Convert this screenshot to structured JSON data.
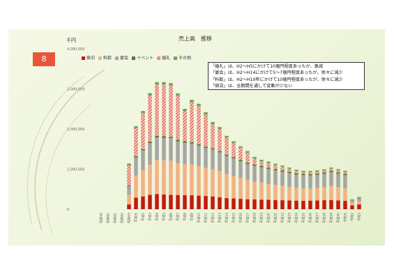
{
  "slide": {
    "number": "8"
  },
  "chart_data": {
    "type": "bar",
    "stacked": true,
    "title": "売上高　推移",
    "unit_label": "千円",
    "ylim": [
      0,
      4000000
    ],
    "yticks": [
      0,
      1000000,
      2000000,
      3000000,
      4000000
    ],
    "ytick_labels": [
      "0",
      "1,000,000",
      "2,000,000",
      "3,000,000",
      "4,000,000"
    ],
    "categories": [
      "昭和59",
      "昭和60",
      "昭和61",
      "昭和62",
      "昭和63",
      "平成元",
      "平成2",
      "平成3",
      "平成4",
      "平成5",
      "平成6",
      "平成7",
      "平成8",
      "平成9",
      "平成10",
      "平成11",
      "平成12",
      "平成13",
      "平成14",
      "平成15",
      "平成16",
      "平成17",
      "平成18",
      "平成19",
      "平成20",
      "平成21",
      "平成22",
      "平成23",
      "平成24",
      "平成25",
      "平成26",
      "平成27",
      "平成28",
      "平成29",
      "平成30",
      "令和元",
      "令和2",
      "令和3"
    ],
    "series": [
      {
        "name": "宿泊",
        "color": "#c41a10",
        "pattern": "solid",
        "values": [
          0,
          0,
          0,
          0,
          120000,
          290000,
          320000,
          360000,
          380000,
          370000,
          360000,
          355000,
          350000,
          350000,
          340000,
          330000,
          320000,
          300000,
          280000,
          270000,
          260000,
          250000,
          245000,
          240000,
          235000,
          230000,
          225000,
          220000,
          215000,
          210000,
          215000,
          220000,
          225000,
          230000,
          220000,
          210000,
          100000,
          120000
        ]
      },
      {
        "name": "料飲",
        "color": "#f4b183",
        "pattern": "solid",
        "values": [
          0,
          0,
          0,
          0,
          250000,
          550000,
          650000,
          750000,
          850000,
          850000,
          850000,
          800000,
          780000,
          770000,
          740000,
          700000,
          680000,
          650000,
          600000,
          560000,
          520000,
          480000,
          450000,
          430000,
          400000,
          380000,
          360000,
          340000,
          320000,
          310000,
          300000,
          310000,
          320000,
          350000,
          330000,
          310000,
          60000,
          80000
        ]
      },
      {
        "name": "宴会",
        "color": "#a6a6a6",
        "pattern": "solid",
        "values": [
          0,
          0,
          0,
          0,
          200000,
          450000,
          500000,
          540000,
          560000,
          560000,
          560000,
          540000,
          530000,
          520000,
          510000,
          500000,
          490000,
          470000,
          450000,
          440000,
          420000,
          400000,
          390000,
          380000,
          370000,
          360000,
          350000,
          340000,
          330000,
          330000,
          330000,
          330000,
          340000,
          350000,
          340000,
          330000,
          50000,
          70000
        ]
      },
      {
        "name": "イベント",
        "color": "#4e7a30",
        "pattern": "solid",
        "values": [
          0,
          0,
          0,
          0,
          20000,
          30000,
          30000,
          35000,
          40000,
          40000,
          35000,
          35000,
          35000,
          30000,
          30000,
          30000,
          30000,
          30000,
          30000,
          30000,
          30000,
          30000,
          30000,
          30000,
          30000,
          30000,
          30000,
          30000,
          30000,
          30000,
          30000,
          30000,
          30000,
          30000,
          30000,
          30000,
          10000,
          10000
        ]
      },
      {
        "name": "婚礼",
        "color": "#e8553a",
        "pattern": "hatched",
        "values": [
          0,
          0,
          0,
          0,
          500000,
          700000,
          900000,
          1150000,
          1280000,
          1290000,
          1280000,
          1100000,
          750000,
          1000000,
          950000,
          800000,
          600000,
          550000,
          420000,
          350000,
          300000,
          250000,
          150000,
          120000,
          120000,
          100000,
          90000,
          80000,
          60000,
          50000,
          50000,
          50000,
          50000,
          50000,
          50000,
          50000,
          10000,
          10000
        ]
      },
      {
        "name": "その他",
        "color": "#6aa84f",
        "pattern": "solid",
        "values": [
          0,
          0,
          0,
          0,
          50000,
          50000,
          50000,
          60000,
          60000,
          60000,
          60000,
          60000,
          60000,
          60000,
          60000,
          60000,
          55000,
          50000,
          50000,
          45000,
          40000,
          40000,
          40000,
          35000,
          35000,
          35000,
          35000,
          30000,
          30000,
          30000,
          30000,
          30000,
          30000,
          30000,
          30000,
          30000,
          20000,
          20000
        ]
      }
    ],
    "legend_position": "top-left",
    "annotation_lines": [
      "「婚礼」は、H2～H5にかけて10億円程度あったが、激減",
      "「宴会」は、H2～H14にかけて5～7億円程度あったが、徐々に減少",
      "「料飲」は、H2～H10年にかけて10億円程度あったが、徐々に減少",
      "「宿泊」は、全期間を通して変動が少ない"
    ]
  }
}
